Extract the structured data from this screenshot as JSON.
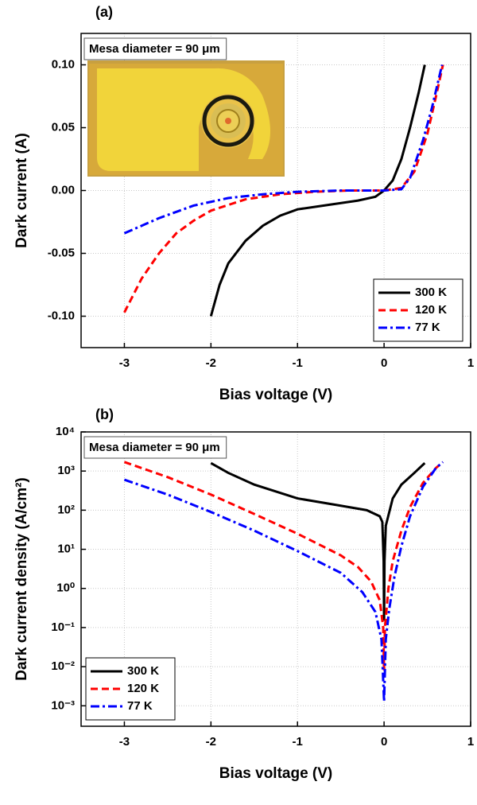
{
  "chart_data": [
    {
      "type": "line",
      "title": "(a)",
      "xlabel": "Bias voltage (V)",
      "ylabel": "Dark current (A)",
      "annotation": "Mesa diameter = 90 μm",
      "xlim": [
        -3.5,
        1
      ],
      "xticks": [
        -3,
        -2,
        -1,
        0,
        1
      ],
      "ylim": [
        -0.125,
        0.125
      ],
      "yticks": [
        {
          "value": -0.1,
          "label": "-0.10"
        },
        {
          "value": -0.05,
          "label": "-0.05"
        },
        {
          "value": 0,
          "label": "0.00"
        },
        {
          "value": 0.05,
          "label": "0.05"
        },
        {
          "value": 0.1,
          "label": "0.10"
        }
      ],
      "grid": true,
      "legend": "lower right",
      "series": [
        {
          "name": "300 K",
          "color": "#000000",
          "dash": "solid",
          "x": [
            -2,
            -1.9,
            -1.8,
            -1.6,
            -1.4,
            -1.2,
            -1,
            -0.6,
            -0.3,
            -0.1,
            0,
            0.1,
            0.2,
            0.3,
            0.4,
            0.47
          ],
          "y": [
            -0.1,
            -0.075,
            -0.058,
            -0.04,
            -0.028,
            -0.02,
            -0.015,
            -0.011,
            -0.008,
            -0.005,
            0,
            0.008,
            0.025,
            0.05,
            0.078,
            0.1
          ]
        },
        {
          "name": "120 K",
          "color": "#ff0000",
          "dash": "dash",
          "x": [
            -3,
            -2.8,
            -2.6,
            -2.4,
            -2.2,
            -2,
            -1.6,
            -1.2,
            -0.8,
            -0.4,
            0,
            0.2,
            0.35,
            0.5,
            0.6,
            0.68
          ],
          "y": [
            -0.097,
            -0.07,
            -0.05,
            -0.034,
            -0.024,
            -0.016,
            -0.007,
            -0.003,
            -0.001,
            0,
            0,
            0.002,
            0.015,
            0.045,
            0.075,
            0.1
          ]
        },
        {
          "name": "77 K",
          "color": "#0000ff",
          "dash": "dashdot",
          "x": [
            -3,
            -2.6,
            -2.2,
            -1.8,
            -1.4,
            -1,
            -0.5,
            0,
            0.2,
            0.3,
            0.45,
            0.55,
            0.67
          ],
          "y": [
            -0.034,
            -0.022,
            -0.012,
            -0.006,
            -0.003,
            -0.001,
            0,
            0,
            0.001,
            0.01,
            0.04,
            0.065,
            0.1
          ]
        }
      ]
    },
    {
      "type": "line",
      "title": "(b)",
      "xlabel": "Bias voltage (V)",
      "ylabel": "Dark current density (A/cm²)",
      "annotation": "Mesa diameter = 90 μm",
      "xlim": [
        -3.5,
        1
      ],
      "xticks": [
        -3,
        -2,
        -1,
        0,
        1
      ],
      "ylim": [
        0.0003,
        10000
      ],
      "log_y": true,
      "yticks": [
        {
          "value": 0.001,
          "label": "10⁻³"
        },
        {
          "value": 0.01,
          "label": "10⁻²"
        },
        {
          "value": 0.1,
          "label": "10⁻¹"
        },
        {
          "value": 1,
          "label": "10⁰"
        },
        {
          "value": 10,
          "label": "10¹"
        },
        {
          "value": 100,
          "label": "10²"
        },
        {
          "value": 1000,
          "label": "10³"
        },
        {
          "value": 10000,
          "label": "10⁴"
        }
      ],
      "grid": true,
      "legend": "lower left",
      "series": [
        {
          "name": "300 K",
          "color": "#000000",
          "dash": "solid",
          "x": [
            -2,
            -1.8,
            -1.5,
            -1,
            -0.5,
            -0.2,
            -0.05,
            -0.02,
            -0.005,
            0,
            0.005,
            0.02,
            0.1,
            0.2,
            0.35,
            0.47
          ],
          "y": [
            1600,
            900,
            450,
            200,
            130,
            100,
            70,
            50,
            5,
            0.15,
            5,
            40,
            200,
            450,
            900,
            1600
          ]
        },
        {
          "name": "120 K",
          "color": "#ff0000",
          "dash": "dash",
          "x": [
            -3,
            -2.5,
            -2,
            -1.5,
            -1,
            -0.5,
            -0.3,
            -0.15,
            -0.05,
            -0.01,
            0,
            0.01,
            0.05,
            0.1,
            0.2,
            0.3,
            0.45,
            0.6,
            0.68
          ],
          "y": [
            1700,
            700,
            250,
            80,
            25,
            7,
            3.5,
            1.5,
            0.5,
            0.1,
            0.008,
            0.1,
            1,
            5,
            30,
            120,
            500,
            1200,
            1700
          ]
        },
        {
          "name": "77 K",
          "color": "#0000ff",
          "dash": "dashdot",
          "x": [
            -3,
            -2.5,
            -2,
            -1.5,
            -1,
            -0.5,
            -0.25,
            -0.1,
            -0.03,
            0,
            0.02,
            0.06,
            0.12,
            0.2,
            0.3,
            0.45,
            0.6,
            0.68
          ],
          "y": [
            600,
            250,
            90,
            30,
            9,
            2.5,
            0.8,
            0.25,
            0.05,
            0.0013,
            0.05,
            0.3,
            2,
            12,
            70,
            400,
            1200,
            1700
          ]
        }
      ]
    }
  ]
}
